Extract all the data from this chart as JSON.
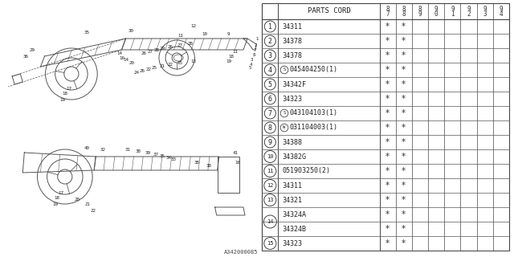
{
  "diagram_id": "A342000085",
  "bg_color": "#ffffff",
  "header_label": "PARTS CORD",
  "col_headers": [
    "8\n7",
    "8\n8",
    "8\n9",
    "9\n0",
    "9\n1",
    "9\n2",
    "9\n3",
    "9\n4"
  ],
  "rows": [
    {
      "num": "1",
      "special": "",
      "code": "34311",
      "stars": [
        1,
        1,
        0,
        0,
        0,
        0,
        0,
        0
      ],
      "sub": false,
      "sub2": false
    },
    {
      "num": "2",
      "special": "",
      "code": "34378",
      "stars": [
        1,
        1,
        0,
        0,
        0,
        0,
        0,
        0
      ],
      "sub": false,
      "sub2": false
    },
    {
      "num": "3",
      "special": "",
      "code": "34378",
      "stars": [
        1,
        1,
        0,
        0,
        0,
        0,
        0,
        0
      ],
      "sub": false,
      "sub2": false
    },
    {
      "num": "4",
      "special": "S",
      "code": "045404250(1)",
      "stars": [
        1,
        1,
        0,
        0,
        0,
        0,
        0,
        0
      ],
      "sub": false,
      "sub2": false
    },
    {
      "num": "5",
      "special": "",
      "code": "34342F",
      "stars": [
        1,
        1,
        0,
        0,
        0,
        0,
        0,
        0
      ],
      "sub": false,
      "sub2": false
    },
    {
      "num": "6",
      "special": "",
      "code": "34323",
      "stars": [
        1,
        1,
        0,
        0,
        0,
        0,
        0,
        0
      ],
      "sub": false,
      "sub2": false
    },
    {
      "num": "7",
      "special": "S",
      "code": "043104103(1)",
      "stars": [
        1,
        1,
        0,
        0,
        0,
        0,
        0,
        0
      ],
      "sub": false,
      "sub2": false
    },
    {
      "num": "8",
      "special": "W",
      "code": "031104003(1)",
      "stars": [
        1,
        1,
        0,
        0,
        0,
        0,
        0,
        0
      ],
      "sub": false,
      "sub2": false
    },
    {
      "num": "9",
      "special": "",
      "code": "34388",
      "stars": [
        1,
        1,
        0,
        0,
        0,
        0,
        0,
        0
      ],
      "sub": false,
      "sub2": false
    },
    {
      "num": "10",
      "special": "",
      "code": "34382G",
      "stars": [
        1,
        1,
        0,
        0,
        0,
        0,
        0,
        0
      ],
      "sub": false,
      "sub2": false
    },
    {
      "num": "11",
      "special": "",
      "code": "051903250(2)",
      "stars": [
        1,
        1,
        0,
        0,
        0,
        0,
        0,
        0
      ],
      "sub": false,
      "sub2": false
    },
    {
      "num": "12",
      "special": "",
      "code": "34311",
      "stars": [
        1,
        1,
        0,
        0,
        0,
        0,
        0,
        0
      ],
      "sub": false,
      "sub2": false
    },
    {
      "num": "13",
      "special": "",
      "code": "34321",
      "stars": [
        1,
        1,
        0,
        0,
        0,
        0,
        0,
        0
      ],
      "sub": false,
      "sub2": false
    },
    {
      "num": "14",
      "special": "",
      "code": "34324A",
      "stars": [
        1,
        1,
        0,
        0,
        0,
        0,
        0,
        0
      ],
      "sub": true,
      "sub2": false
    },
    {
      "num": "14",
      "special": "",
      "code": "34324B",
      "stars": [
        1,
        1,
        0,
        0,
        0,
        0,
        0,
        0
      ],
      "sub": false,
      "sub2": true
    },
    {
      "num": "15",
      "special": "",
      "code": "34323",
      "stars": [
        1,
        1,
        0,
        0,
        0,
        0,
        0,
        0
      ],
      "sub": false,
      "sub2": false
    }
  ],
  "lc": "#555555",
  "tc": "#333333"
}
